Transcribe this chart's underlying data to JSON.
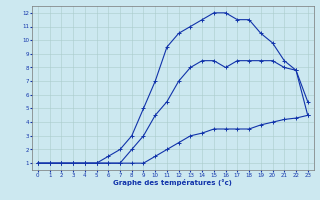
{
  "xlabel": "Graphe des températures (°c)",
  "background_color": "#cce8f0",
  "grid_color": "#aacccc",
  "line_color": "#1133aa",
  "xlim": [
    -0.5,
    23.5
  ],
  "ylim": [
    0.5,
    12.5
  ],
  "xticks": [
    0,
    1,
    2,
    3,
    4,
    5,
    6,
    7,
    8,
    9,
    10,
    11,
    12,
    13,
    14,
    15,
    16,
    17,
    18,
    19,
    20,
    21,
    22,
    23
  ],
  "yticks": [
    1,
    2,
    3,
    4,
    5,
    6,
    7,
    8,
    9,
    10,
    11,
    12
  ],
  "line1_x": [
    0,
    1,
    2,
    3,
    4,
    5,
    6,
    7,
    8,
    9,
    10,
    11,
    12,
    13,
    14,
    15,
    16,
    17,
    18,
    19,
    20,
    21,
    22,
    23
  ],
  "line1_y": [
    1,
    1,
    1,
    1,
    1,
    1,
    1,
    1,
    1,
    1,
    1.5,
    2,
    2.5,
    3,
    3.2,
    3.5,
    3.5,
    3.5,
    3.5,
    3.8,
    4,
    4.2,
    4.3,
    4.5
  ],
  "line2_x": [
    0,
    1,
    2,
    3,
    4,
    5,
    6,
    7,
    8,
    9,
    10,
    11,
    12,
    13,
    14,
    15,
    16,
    17,
    18,
    19,
    20,
    21,
    22,
    23
  ],
  "line2_y": [
    1,
    1,
    1,
    1,
    1,
    1,
    1,
    1,
    2,
    3,
    4.5,
    5.5,
    7,
    8,
    8.5,
    8.5,
    8,
    8.5,
    8.5,
    8.5,
    8.5,
    8,
    7.8,
    4.5
  ],
  "line3_x": [
    0,
    1,
    2,
    3,
    4,
    5,
    6,
    7,
    8,
    9,
    10,
    11,
    12,
    13,
    14,
    15,
    16,
    17,
    18,
    19,
    20,
    21,
    22,
    23
  ],
  "line3_y": [
    1,
    1,
    1,
    1,
    1,
    1,
    1.5,
    2,
    3,
    5,
    7,
    9.5,
    10.5,
    11,
    11.5,
    12,
    12,
    11.5,
    11.5,
    10.5,
    9.8,
    8.5,
    7.8,
    5.5
  ]
}
